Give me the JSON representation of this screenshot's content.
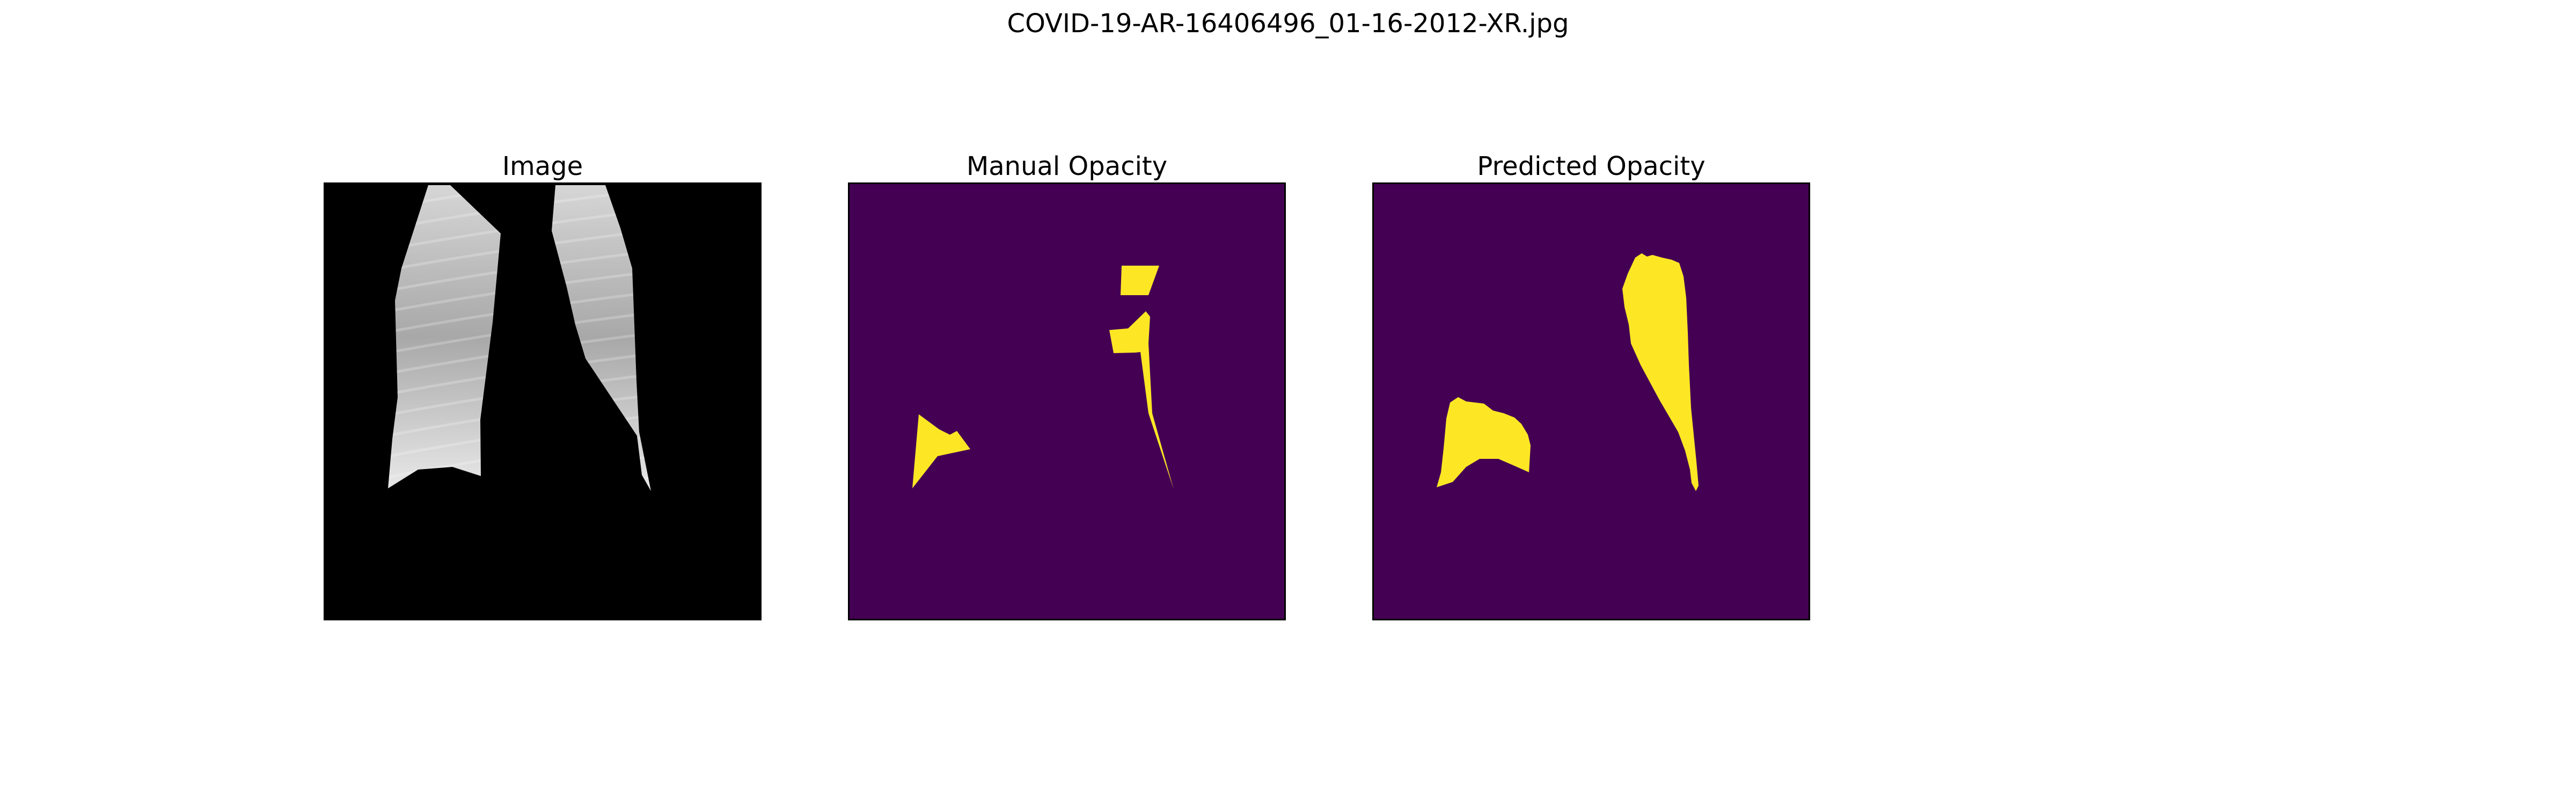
{
  "figure": {
    "title": "COVID-19-AR-16406496_01-16-2012-XR.jpg",
    "panels": [
      {
        "title": "Image",
        "content": "segmented-lung-xray"
      },
      {
        "title": "Manual Opacity",
        "content": "manual-opacity-mask"
      },
      {
        "title": "Predicted Opacity",
        "content": "predicted-opacity-mask"
      }
    ],
    "colors": {
      "image_background": "#000000",
      "mask_background": "#440154",
      "mask_foreground": "#fde725",
      "page_background": "#ffffff",
      "frame": "#000000"
    }
  }
}
